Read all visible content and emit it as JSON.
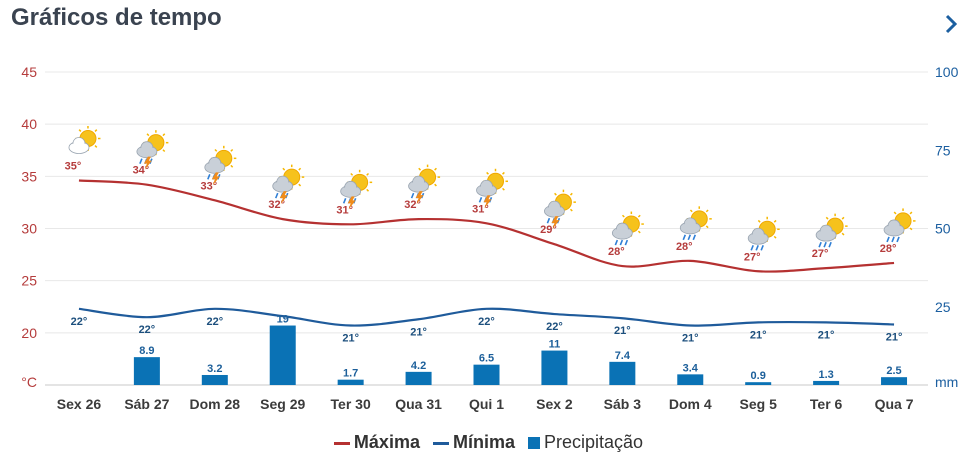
{
  "header": {
    "title": "Gráficos de tempo"
  },
  "colors": {
    "max": "#b53131",
    "min": "#1f5b9b",
    "precip": "#0a72b5"
  },
  "legend": {
    "max_label": "Máxima",
    "min_label": "Mínima",
    "precip_label": "Precipitação"
  },
  "chart_data": {
    "type": "line",
    "categories": [
      "Sex 26",
      "Sáb 27",
      "Dom 28",
      "Seg 29",
      "Ter 30",
      "Qua 31",
      "Qui 1",
      "Sex 2",
      "Sáb 3",
      "Dom 4",
      "Seg 5",
      "Ter 6",
      "Qua 7"
    ],
    "series": [
      {
        "name": "Máxima",
        "axis": "left",
        "values": [
          35,
          34,
          33,
          32,
          31,
          32,
          31,
          29,
          28,
          28,
          27,
          27,
          28
        ],
        "plot_values": [
          34.6,
          34.2,
          32.7,
          30.9,
          30.4,
          30.9,
          30.5,
          28.5,
          26.4,
          26.9,
          25.9,
          26.2,
          26.7
        ],
        "labels": [
          "35°",
          "34°",
          "33°",
          "32°",
          "31°",
          "32°",
          "31°",
          "29°",
          "28°",
          "28°",
          "27°",
          "27°",
          "28°"
        ]
      },
      {
        "name": "Mínima",
        "axis": "left",
        "values": [
          22,
          22,
          22,
          22,
          21,
          21,
          22,
          22,
          21,
          21,
          21,
          21,
          21
        ],
        "plot_values": [
          22.3,
          21.5,
          22.3,
          21.6,
          20.7,
          21.3,
          22.3,
          21.8,
          21.4,
          20.7,
          21.0,
          21.0,
          20.8
        ],
        "labels": [
          "22°",
          "22°",
          "22°",
          "",
          "21°",
          "21°",
          "22°",
          "22°",
          "21°",
          "21°",
          "21°",
          "21°",
          "21°"
        ]
      },
      {
        "name": "Precipitação",
        "type": "bar",
        "axis": "right",
        "values": [
          0,
          8.9,
          3.2,
          19,
          1.7,
          4.2,
          6.5,
          11,
          7.4,
          3.4,
          0.9,
          1.3,
          2.5
        ],
        "labels": [
          "",
          "8.9",
          "3.2",
          "19",
          "1.7",
          "4.2",
          "6.5",
          "11",
          "7.4",
          "3.4",
          "0.9",
          "1.3",
          "2.5"
        ]
      }
    ],
    "icons": [
      "partly-cloudy-icon",
      "thunderstorm-icon",
      "thunderstorm-icon",
      "thunderstorm-icon",
      "thunderstorm-icon",
      "thunderstorm-icon",
      "thunderstorm-icon",
      "thunderstorm-icon",
      "rain-icon",
      "rain-icon",
      "rain-icon",
      "rain-icon",
      "rain-icon"
    ],
    "y_left": {
      "ticks": [
        "°C",
        "20",
        "25",
        "30",
        "35",
        "40",
        "45"
      ],
      "ylim": [
        15,
        45
      ]
    },
    "y_right": {
      "ticks": [
        "mm",
        "25",
        "50",
        "75",
        "100"
      ],
      "ylim": [
        0,
        100
      ]
    },
    "grid": true,
    "legend_position": "bottom"
  }
}
